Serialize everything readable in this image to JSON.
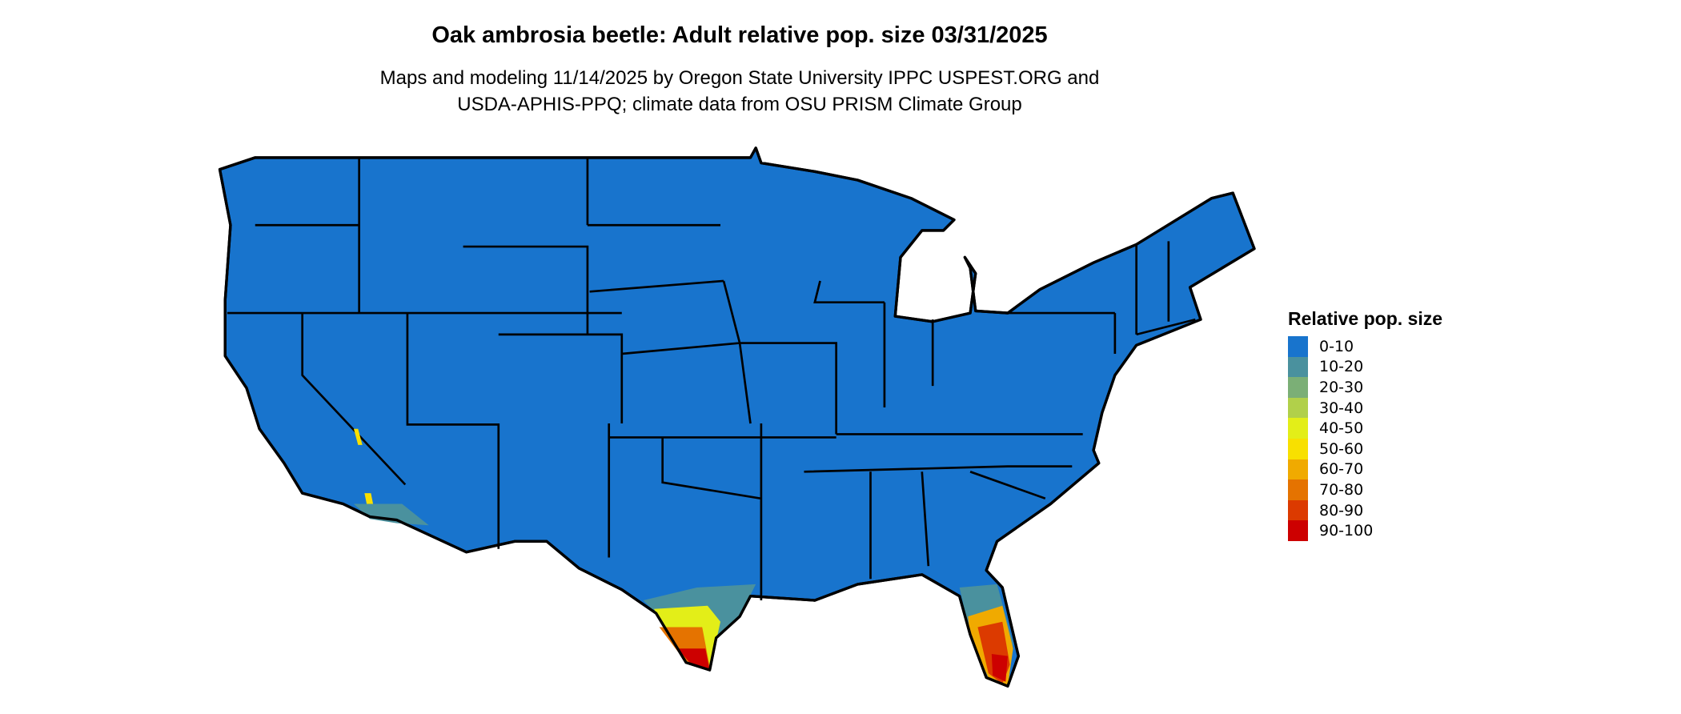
{
  "title": "Oak ambrosia beetle: Adult relative pop. size 03/31/2025",
  "subtitle_lines": [
    "Maps and modeling 11/14/2025 by Oregon State University IPPC USPEST.ORG and",
    "USDA-APHIS-PPQ; climate data from OSU PRISM Climate Group"
  ],
  "legend": {
    "title": "Relative pop. size",
    "items": [
      {
        "label": "0-10",
        "color": "#1874CD"
      },
      {
        "label": "10-20",
        "color": "#4A919E"
      },
      {
        "label": "20-30",
        "color": "#7BAF76"
      },
      {
        "label": "30-40",
        "color": "#B1D04A"
      },
      {
        "label": "40-50",
        "color": "#E3EE18"
      },
      {
        "label": "50-60",
        "color": "#F8E000"
      },
      {
        "label": "60-70",
        "color": "#F0AA00"
      },
      {
        "label": "70-80",
        "color": "#E57300"
      },
      {
        "label": "80-90",
        "color": "#DC3A00"
      },
      {
        "label": "90-100",
        "color": "#CD0000"
      }
    ]
  },
  "map": {
    "region": "Contiguous United States",
    "base_color": "#1874CD",
    "border_color": "#000000"
  }
}
